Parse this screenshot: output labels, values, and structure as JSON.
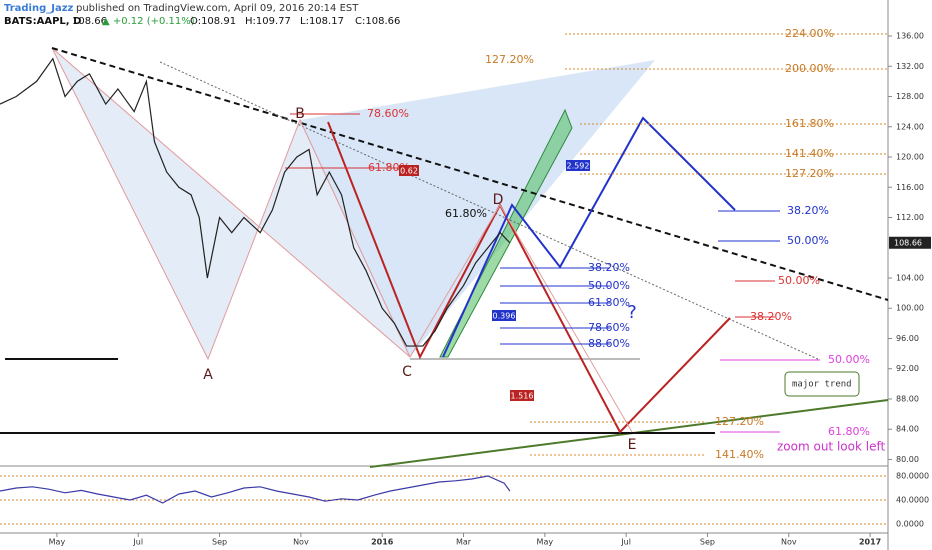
{
  "header": {
    "author": "Trading_Jazz",
    "published": "published on TradingView.com, April 09, 2016 20:14 EST",
    "symbol": "BATS:AAPL, D",
    "last": "108.66",
    "change": "▲ +0.12 (+0.11%)",
    "open": "O:108.91",
    "high": "H:109.77",
    "low": "L:108.17",
    "close": "C:108.66"
  },
  "chart_data": [
    {
      "type": "line",
      "color": "#222222",
      "x": [
        3.6,
        4.0,
        4.5,
        4.9,
        5.2,
        5.5,
        5.8,
        6.2,
        6.5,
        6.9,
        7.2,
        7.4,
        7.7,
        8.0,
        8.3,
        8.5,
        8.7,
        9.0,
        9.3,
        9.6,
        10.0,
        10.3,
        10.6,
        10.9,
        11.2,
        11.4,
        11.7,
        12.0,
        12.3,
        12.6,
        13.0,
        13.3,
        13.6,
        14.0,
        14.3,
        14.6,
        15.0,
        15.3,
        15.6,
        15.9,
        16.14
      ],
      "values": [
        127,
        128,
        130,
        133,
        128,
        130,
        131,
        127,
        129,
        126,
        130,
        122,
        118,
        116,
        115,
        112,
        104,
        112,
        110,
        112,
        110,
        113,
        118,
        120,
        121,
        115,
        118,
        115,
        108,
        105,
        100,
        98,
        95,
        95,
        97,
        100,
        103,
        106,
        108,
        110,
        108.66
      ],
      "xlim": [
        3.6,
        25.44
      ],
      "xticks": [
        {
          "value": 5,
          "label": "May"
        },
        {
          "value": 7,
          "label": "Jul"
        },
        {
          "value": 9,
          "label": "Sep"
        },
        {
          "value": 11,
          "label": "Nov"
        },
        {
          "value": 13,
          "label": "2016"
        },
        {
          "value": 15,
          "label": "Mar"
        },
        {
          "value": 17,
          "label": "May"
        },
        {
          "value": 19,
          "label": "Jul"
        },
        {
          "value": 21,
          "label": "Sep"
        },
        {
          "value": 23,
          "label": "Nov"
        },
        {
          "value": 25,
          "label": "2017"
        }
      ],
      "ylim": [
        79.4,
        136.4
      ],
      "yticks": [
        {
          "value": 136,
          "label": "136.00"
        },
        {
          "value": 132,
          "label": "132.00"
        },
        {
          "value": 128,
          "label": "128.00"
        },
        {
          "value": 124,
          "label": "124.00"
        },
        {
          "value": 120,
          "label": "120.00"
        },
        {
          "value": 116,
          "label": "116.00"
        },
        {
          "value": 112,
          "label": "112.00"
        },
        {
          "value": 104,
          "label": "104.00"
        },
        {
          "value": 100,
          "label": "100.00"
        },
        {
          "value": 96,
          "label": "96.00"
        },
        {
          "value": 92,
          "label": "92.00"
        },
        {
          "value": 88,
          "label": "88.00"
        },
        {
          "value": 84,
          "label": "84.00"
        },
        {
          "value": 80,
          "label": "80.00"
        }
      ],
      "price_label": {
        "value": 108.66,
        "label": "108.66"
      }
    },
    {
      "type": "line",
      "color": "#3a3aa8",
      "x": [
        3.6,
        4.0,
        4.4,
        4.8,
        5.2,
        5.6,
        6.0,
        6.4,
        6.8,
        7.2,
        7.6,
        8.0,
        8.4,
        8.8,
        9.2,
        9.6,
        10.0,
        10.4,
        10.8,
        11.2,
        11.6,
        12.0,
        12.4,
        12.8,
        13.2,
        13.6,
        14.0,
        14.4,
        14.8,
        15.2,
        15.6,
        16.0,
        16.14
      ],
      "values": [
        55,
        60,
        62,
        58,
        52,
        56,
        50,
        45,
        40,
        48,
        35,
        50,
        55,
        45,
        52,
        60,
        62,
        55,
        50,
        45,
        38,
        42,
        40,
        48,
        55,
        60,
        65,
        70,
        72,
        75,
        80,
        68,
        55
      ],
      "ylim": [
        -10,
        90
      ],
      "yticks": [
        {
          "value": 80,
          "label": "80.0000"
        },
        {
          "value": 40,
          "label": "40.0000"
        },
        {
          "value": 0,
          "label": "0.0000"
        }
      ]
    }
  ],
  "annotations": [
    "A",
    "B",
    "C",
    "D",
    "E",
    "127.20%",
    "224.00%",
    "200.00%",
    "161.80%",
    "141.40%",
    "127.20%",
    "78.60%",
    "61.80%",
    "0.62",
    "61.80%",
    "38.20%",
    "50.00%",
    "61.80%",
    "78.60%",
    "88.60%",
    "?",
    "2.592",
    "0.396",
    "38.20%",
    "50.00%",
    "50.00%",
    "38.20%",
    "50.00%",
    "major trend",
    "127.20%",
    "61.80%",
    "zoom out look left",
    "141.40%",
    "1.516"
  ]
}
